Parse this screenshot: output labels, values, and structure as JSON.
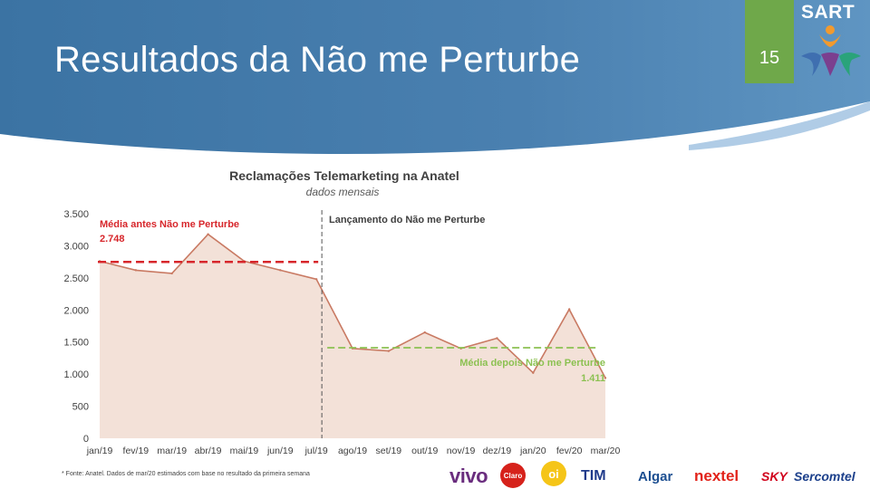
{
  "slide": {
    "title": "Resultados da Não me Perturbe",
    "page_number": "15"
  },
  "logo": {
    "text": "SART"
  },
  "colors": {
    "header_blue": "#3f78a8",
    "page_box_green": "#6fa84a",
    "area_fill": "#f3e1d8",
    "line_color": "#c97a63",
    "avg_before": "#d7262b",
    "avg_after": "#8cc152"
  },
  "chart_data": {
    "type": "area",
    "title": "Reclamações Telemarketing na Anatel",
    "subtitle": "dados mensais",
    "categories": [
      "jan/19",
      "fev/19",
      "mar/19",
      "abr/19",
      "mai/19",
      "jun/19",
      "jul/19",
      "ago/19",
      "set/19",
      "out/19",
      "nov/19",
      "dez/19",
      "jan/20",
      "fev/20",
      "mar/20"
    ],
    "y_tick_labels": [
      "0",
      "500",
      "1.000",
      "1.500",
      "2.000",
      "2.500",
      "3.000",
      "3.500"
    ],
    "y_ticks": [
      0,
      500,
      1000,
      1500,
      2000,
      2500,
      3000,
      3500
    ],
    "ylim": [
      0,
      3500
    ],
    "series": [
      {
        "values": [
          2760,
          2620,
          2570,
          3180,
          2760,
          2620,
          2480,
          1400,
          1360,
          1650,
          1400,
          1560,
          1020,
          2010,
          940
        ]
      }
    ],
    "annotations": {
      "avg_before_label": "Média antes Não me Perturbe",
      "avg_before_value_label": "2.748",
      "avg_before_value": 2748,
      "avg_after_label": "Média depois Não me Perturbe",
      "avg_after_value_label": "1.411",
      "avg_after_value": 1411,
      "launch_label": "Lançamento do Não me Perturbe",
      "launch_category": "jul/19"
    },
    "grid": false,
    "legend": "none"
  },
  "footnote": "* Fonte: Anatel. Dados de mar/20 estimados com base no resultado da primeira semana",
  "brands": {
    "vivo": "vivo",
    "claro": "Claro",
    "oi": "oi",
    "tim": "TIM",
    "algar": "Algar",
    "nextel": "nextel",
    "sky": "SKY",
    "sercomtel": "Sercomtel"
  }
}
